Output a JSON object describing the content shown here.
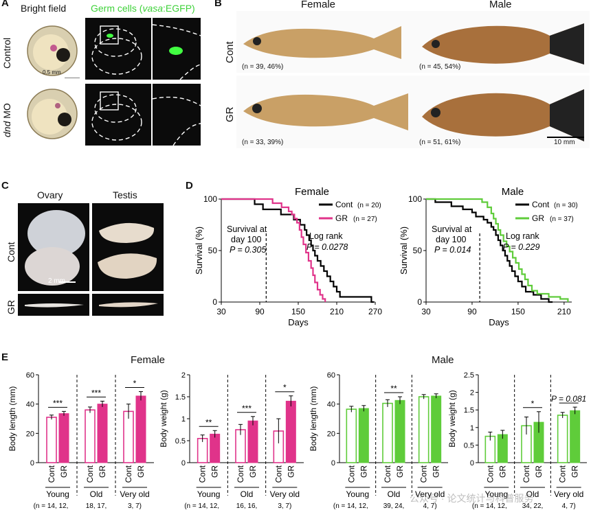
{
  "panelA": {
    "letter": "A",
    "col_brightfield": "Bright field",
    "col_germ": "Germ cells (",
    "col_germ_gene": "vasa",
    "col_germ_tail": ":EGFP)",
    "row_control": "Control",
    "row_dnd_italic": "dnd",
    "row_dnd_rest": " MO",
    "scale": "0.5 mm"
  },
  "panelB": {
    "letter": "B",
    "col_female": "Female",
    "col_male": "Male",
    "row_cont": "Cont",
    "row_gr": "GR",
    "n_cont_female": "(n = 39, 46%)",
    "n_cont_male": "(n = 45, 54%)",
    "n_gr_female": "(n = 33, 39%)",
    "n_gr_male": "(n = 51, 61%)",
    "scale": "10 mm"
  },
  "panelC": {
    "letter": "C",
    "col_ovary": "Ovary",
    "col_testis": "Testis",
    "row_cont": "Cont",
    "row_gr": "GR",
    "scale": "2 mm"
  },
  "panelD": {
    "letter": "D",
    "female": {
      "title": "Female",
      "legend_cont": "Cont",
      "legend_cont_n": "(n = 20)",
      "legend_gr": "GR",
      "legend_gr_n": "(n = 27)",
      "survival_l1": "Survival at",
      "survival_l2": "day 100",
      "survival_p": "P = 0.305",
      "logrank_l1": "Log rank",
      "logrank_p": "P = 0.0278"
    },
    "male": {
      "title": "Male",
      "legend_cont": "Cont",
      "legend_cont_n": "(n = 30)",
      "legend_gr": "GR",
      "legend_gr_n": "(n = 37)",
      "survival_l1": "Survival at",
      "survival_l2": "day 100",
      "survival_p": "P = 0.014",
      "logrank_l1": "Log rank",
      "logrank_p": "P = 0.229"
    }
  },
  "panelE": {
    "letter": "E",
    "female_title": "Female",
    "male_title": "Male",
    "sig_p": "P = 0.081"
  },
  "watermark": "公众号 · 论文统计与科普服务",
  "colors": {
    "cont_female": "#e0338a",
    "gr_female": "#e0338a",
    "male": "#5fcc3a",
    "black": "#000000"
  },
  "chart_data": [
    {
      "type": "line",
      "title": "Female",
      "xlabel": "Days",
      "ylabel": "Survival (%)",
      "xlim": [
        30,
        270
      ],
      "ylim": [
        0,
        100
      ],
      "xticks": [
        30,
        90,
        150,
        210,
        270
      ],
      "yticks": [
        0,
        50,
        100
      ],
      "series": [
        {
          "name": "Cont",
          "color": "#000000",
          "points": [
            [
              30,
              100
            ],
            [
              80,
              100
            ],
            [
              82,
              95
            ],
            [
              93,
              95
            ],
            [
              95,
              90
            ],
            [
              120,
              90
            ],
            [
              123,
              85
            ],
            [
              140,
              85
            ],
            [
              143,
              80
            ],
            [
              150,
              80
            ],
            [
              153,
              75
            ],
            [
              158,
              75
            ],
            [
              160,
              70
            ],
            [
              163,
              65
            ],
            [
              167,
              60
            ],
            [
              170,
              55
            ],
            [
              173,
              50
            ],
            [
              176,
              45
            ],
            [
              180,
              40
            ],
            [
              185,
              35
            ],
            [
              190,
              30
            ],
            [
              195,
              25
            ],
            [
              200,
              20
            ],
            [
              205,
              15
            ],
            [
              210,
              10
            ],
            [
              215,
              5
            ],
            [
              262,
              5
            ],
            [
              264,
              0
            ],
            [
              268,
              0
            ]
          ]
        },
        {
          "name": "GR",
          "color": "#e0338a",
          "points": [
            [
              30,
              100
            ],
            [
              108,
              100
            ],
            [
              110,
              96
            ],
            [
              122,
              96
            ],
            [
              124,
              92
            ],
            [
              133,
              92
            ],
            [
              135,
              88
            ],
            [
              140,
              85
            ],
            [
              144,
              81
            ],
            [
              148,
              77
            ],
            [
              152,
              70
            ],
            [
              155,
              63
            ],
            [
              158,
              56
            ],
            [
              162,
              48
            ],
            [
              166,
              40
            ],
            [
              170,
              33
            ],
            [
              173,
              26
            ],
            [
              176,
              19
            ],
            [
              180,
              12
            ],
            [
              184,
              7
            ],
            [
              188,
              3
            ],
            [
              192,
              0
            ]
          ]
        }
      ]
    },
    {
      "type": "line",
      "title": "Male",
      "xlabel": "Days",
      "ylabel": "Survival (%)",
      "xlim": [
        30,
        220
      ],
      "ylim": [
        0,
        100
      ],
      "xticks": [
        30,
        90,
        150,
        210
      ],
      "yticks": [
        0,
        50,
        100
      ],
      "series": [
        {
          "name": "Cont",
          "color": "#000000",
          "points": [
            [
              30,
              100
            ],
            [
              40,
              100
            ],
            [
              42,
              97
            ],
            [
              60,
              97
            ],
            [
              63,
              93
            ],
            [
              75,
              93
            ],
            [
              78,
              90
            ],
            [
              88,
              90
            ],
            [
              90,
              87
            ],
            [
              95,
              83
            ],
            [
              100,
              83
            ],
            [
              105,
              80
            ],
            [
              110,
              77
            ],
            [
              115,
              73
            ],
            [
              118,
              70
            ],
            [
              121,
              65
            ],
            [
              124,
              60
            ],
            [
              127,
              55
            ],
            [
              130,
              50
            ],
            [
              133,
              45
            ],
            [
              136,
              40
            ],
            [
              139,
              35
            ],
            [
              142,
              30
            ],
            [
              146,
              25
            ],
            [
              150,
              20
            ],
            [
              155,
              15
            ],
            [
              160,
              10
            ],
            [
              170,
              7
            ],
            [
              180,
              3
            ],
            [
              190,
              0
            ],
            [
              195,
              0
            ]
          ]
        },
        {
          "name": "GR",
          "color": "#5fcc3a",
          "points": [
            [
              30,
              100
            ],
            [
              100,
              100
            ],
            [
              103,
              97
            ],
            [
              110,
              92
            ],
            [
              115,
              86
            ],
            [
              118,
              81
            ],
            [
              121,
              76
            ],
            [
              124,
              70
            ],
            [
              127,
              65
            ],
            [
              131,
              59
            ],
            [
              135,
              54
            ],
            [
              139,
              49
            ],
            [
              143,
              43
            ],
            [
              147,
              38
            ],
            [
              151,
              32
            ],
            [
              155,
              27
            ],
            [
              159,
              22
            ],
            [
              163,
              16
            ],
            [
              168,
              11
            ],
            [
              175,
              8
            ],
            [
              190,
              5
            ],
            [
              205,
              3
            ],
            [
              215,
              0
            ]
          ]
        }
      ]
    },
    {
      "type": "bar",
      "title": "Female",
      "ylabel": "Body length (mm)",
      "ylim": [
        0,
        60
      ],
      "yticks": [
        0,
        20,
        40,
        60
      ],
      "groups": [
        "Young",
        "Old",
        "Very old"
      ],
      "bar_labels": [
        "Cont",
        "GR"
      ],
      "n_labels": [
        "(n = 14, 12,",
        "18, 17,",
        "3, 7)"
      ],
      "color": "#e0338a",
      "cont_values": [
        31,
        36,
        35
      ],
      "gr_values": [
        33.5,
        40,
        45.5
      ],
      "cont_err": [
        1.5,
        2,
        5
      ],
      "gr_err": [
        1.5,
        2,
        3
      ],
      "significance": [
        "***",
        "***",
        "*"
      ]
    },
    {
      "type": "bar",
      "title": "Female",
      "ylabel": "Body weight (g)",
      "ylim": [
        0,
        2.0
      ],
      "yticks": [
        0,
        0.5,
        1.0,
        1.5,
        2.0
      ],
      "groups": [
        "Young",
        "Old",
        "Very old"
      ],
      "bar_labels": [
        "Cont",
        "GR"
      ],
      "n_labels": [
        "(n = 14, 12,",
        "16, 16,",
        "3, 7)"
      ],
      "color": "#e0338a",
      "cont_values": [
        0.55,
        0.75,
        0.72
      ],
      "gr_values": [
        0.65,
        0.95,
        1.4
      ],
      "cont_err": [
        0.08,
        0.12,
        0.28
      ],
      "gr_err": [
        0.08,
        0.1,
        0.12
      ],
      "significance": [
        "**",
        "***",
        "*"
      ]
    },
    {
      "type": "bar",
      "title": "Male",
      "ylabel": "Body length (mm)",
      "ylim": [
        0,
        60
      ],
      "yticks": [
        0,
        20,
        40,
        60
      ],
      "groups": [
        "Young",
        "Old",
        "Very old"
      ],
      "bar_labels": [
        "Cont",
        "GR"
      ],
      "n_labels": [
        "(n = 14, 12,",
        "39, 24,",
        "4, 7)"
      ],
      "color": "#5fcc3a",
      "cont_values": [
        36.5,
        40.5,
        45
      ],
      "gr_values": [
        37,
        42.5,
        45.5
      ],
      "cont_err": [
        2,
        2.5,
        1.5
      ],
      "gr_err": [
        2,
        2.5,
        1.5
      ],
      "significance": [
        "",
        "**",
        ""
      ]
    },
    {
      "type": "bar",
      "title": "Male",
      "ylabel": "Body weight (g)",
      "ylim": [
        0,
        2.5
      ],
      "yticks": [
        0,
        0.5,
        1.0,
        1.5,
        2.0,
        2.5
      ],
      "groups": [
        "Young",
        "Old",
        "Very old"
      ],
      "bar_labels": [
        "Cont",
        "GR"
      ],
      "n_labels": [
        "(n = 14, 12,",
        "34, 22,",
        "4, 7)"
      ],
      "color": "#5fcc3a",
      "cont_values": [
        0.75,
        1.05,
        1.35
      ],
      "gr_values": [
        0.8,
        1.15,
        1.48
      ],
      "cont_err": [
        0.12,
        0.25,
        0.08
      ],
      "gr_err": [
        0.12,
        0.3,
        0.1
      ],
      "significance": [
        "",
        "*",
        "P = 0.081"
      ]
    }
  ]
}
